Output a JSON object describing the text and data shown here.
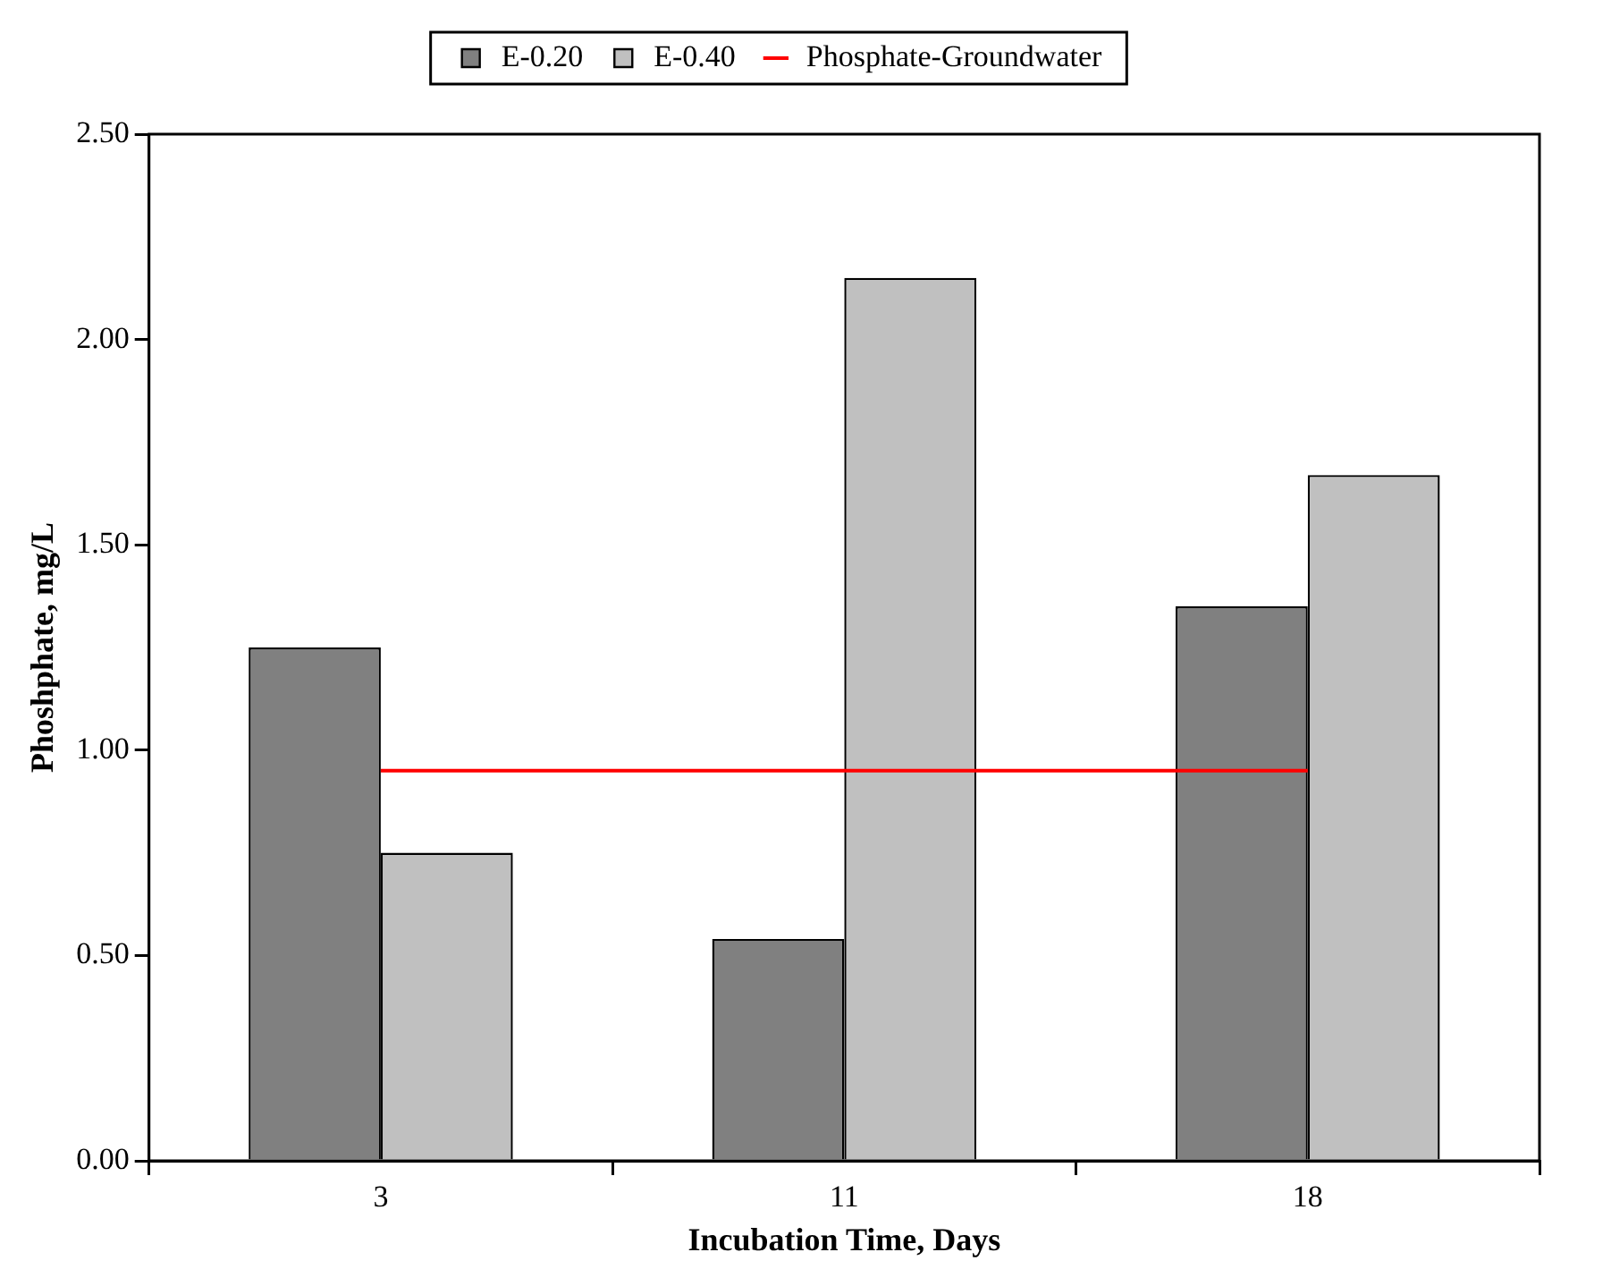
{
  "chart_data": {
    "type": "bar",
    "xlabel": "Incubation Time, Days",
    "ylabel": "Phoshphate, mg/L",
    "categories": [
      "3",
      "11",
      "18"
    ],
    "series": [
      {
        "name": "E-0.20",
        "color": "#808080",
        "values": [
          1.25,
          0.54,
          1.35
        ]
      },
      {
        "name": "E-0.40",
        "color": "#c0c0c0",
        "values": [
          0.75,
          2.15,
          1.67
        ]
      },
      {
        "name": "Phosphate-Groundwater",
        "type": "line",
        "color": "#ff0000",
        "values": [
          0.95,
          0.95,
          0.95
        ]
      }
    ],
    "ylim": [
      0,
      2.5
    ],
    "yticks": [
      {
        "value": 0,
        "label": "0.00"
      },
      {
        "value": 0.5,
        "label": "0.50"
      },
      {
        "value": 1,
        "label": "1.00"
      },
      {
        "value": 1.5,
        "label": "1.50"
      },
      {
        "value": 2,
        "label": "2.00"
      },
      {
        "value": 2.5,
        "label": "2.50"
      }
    ],
    "grid": false,
    "legend": "top",
    "marker": "none"
  }
}
